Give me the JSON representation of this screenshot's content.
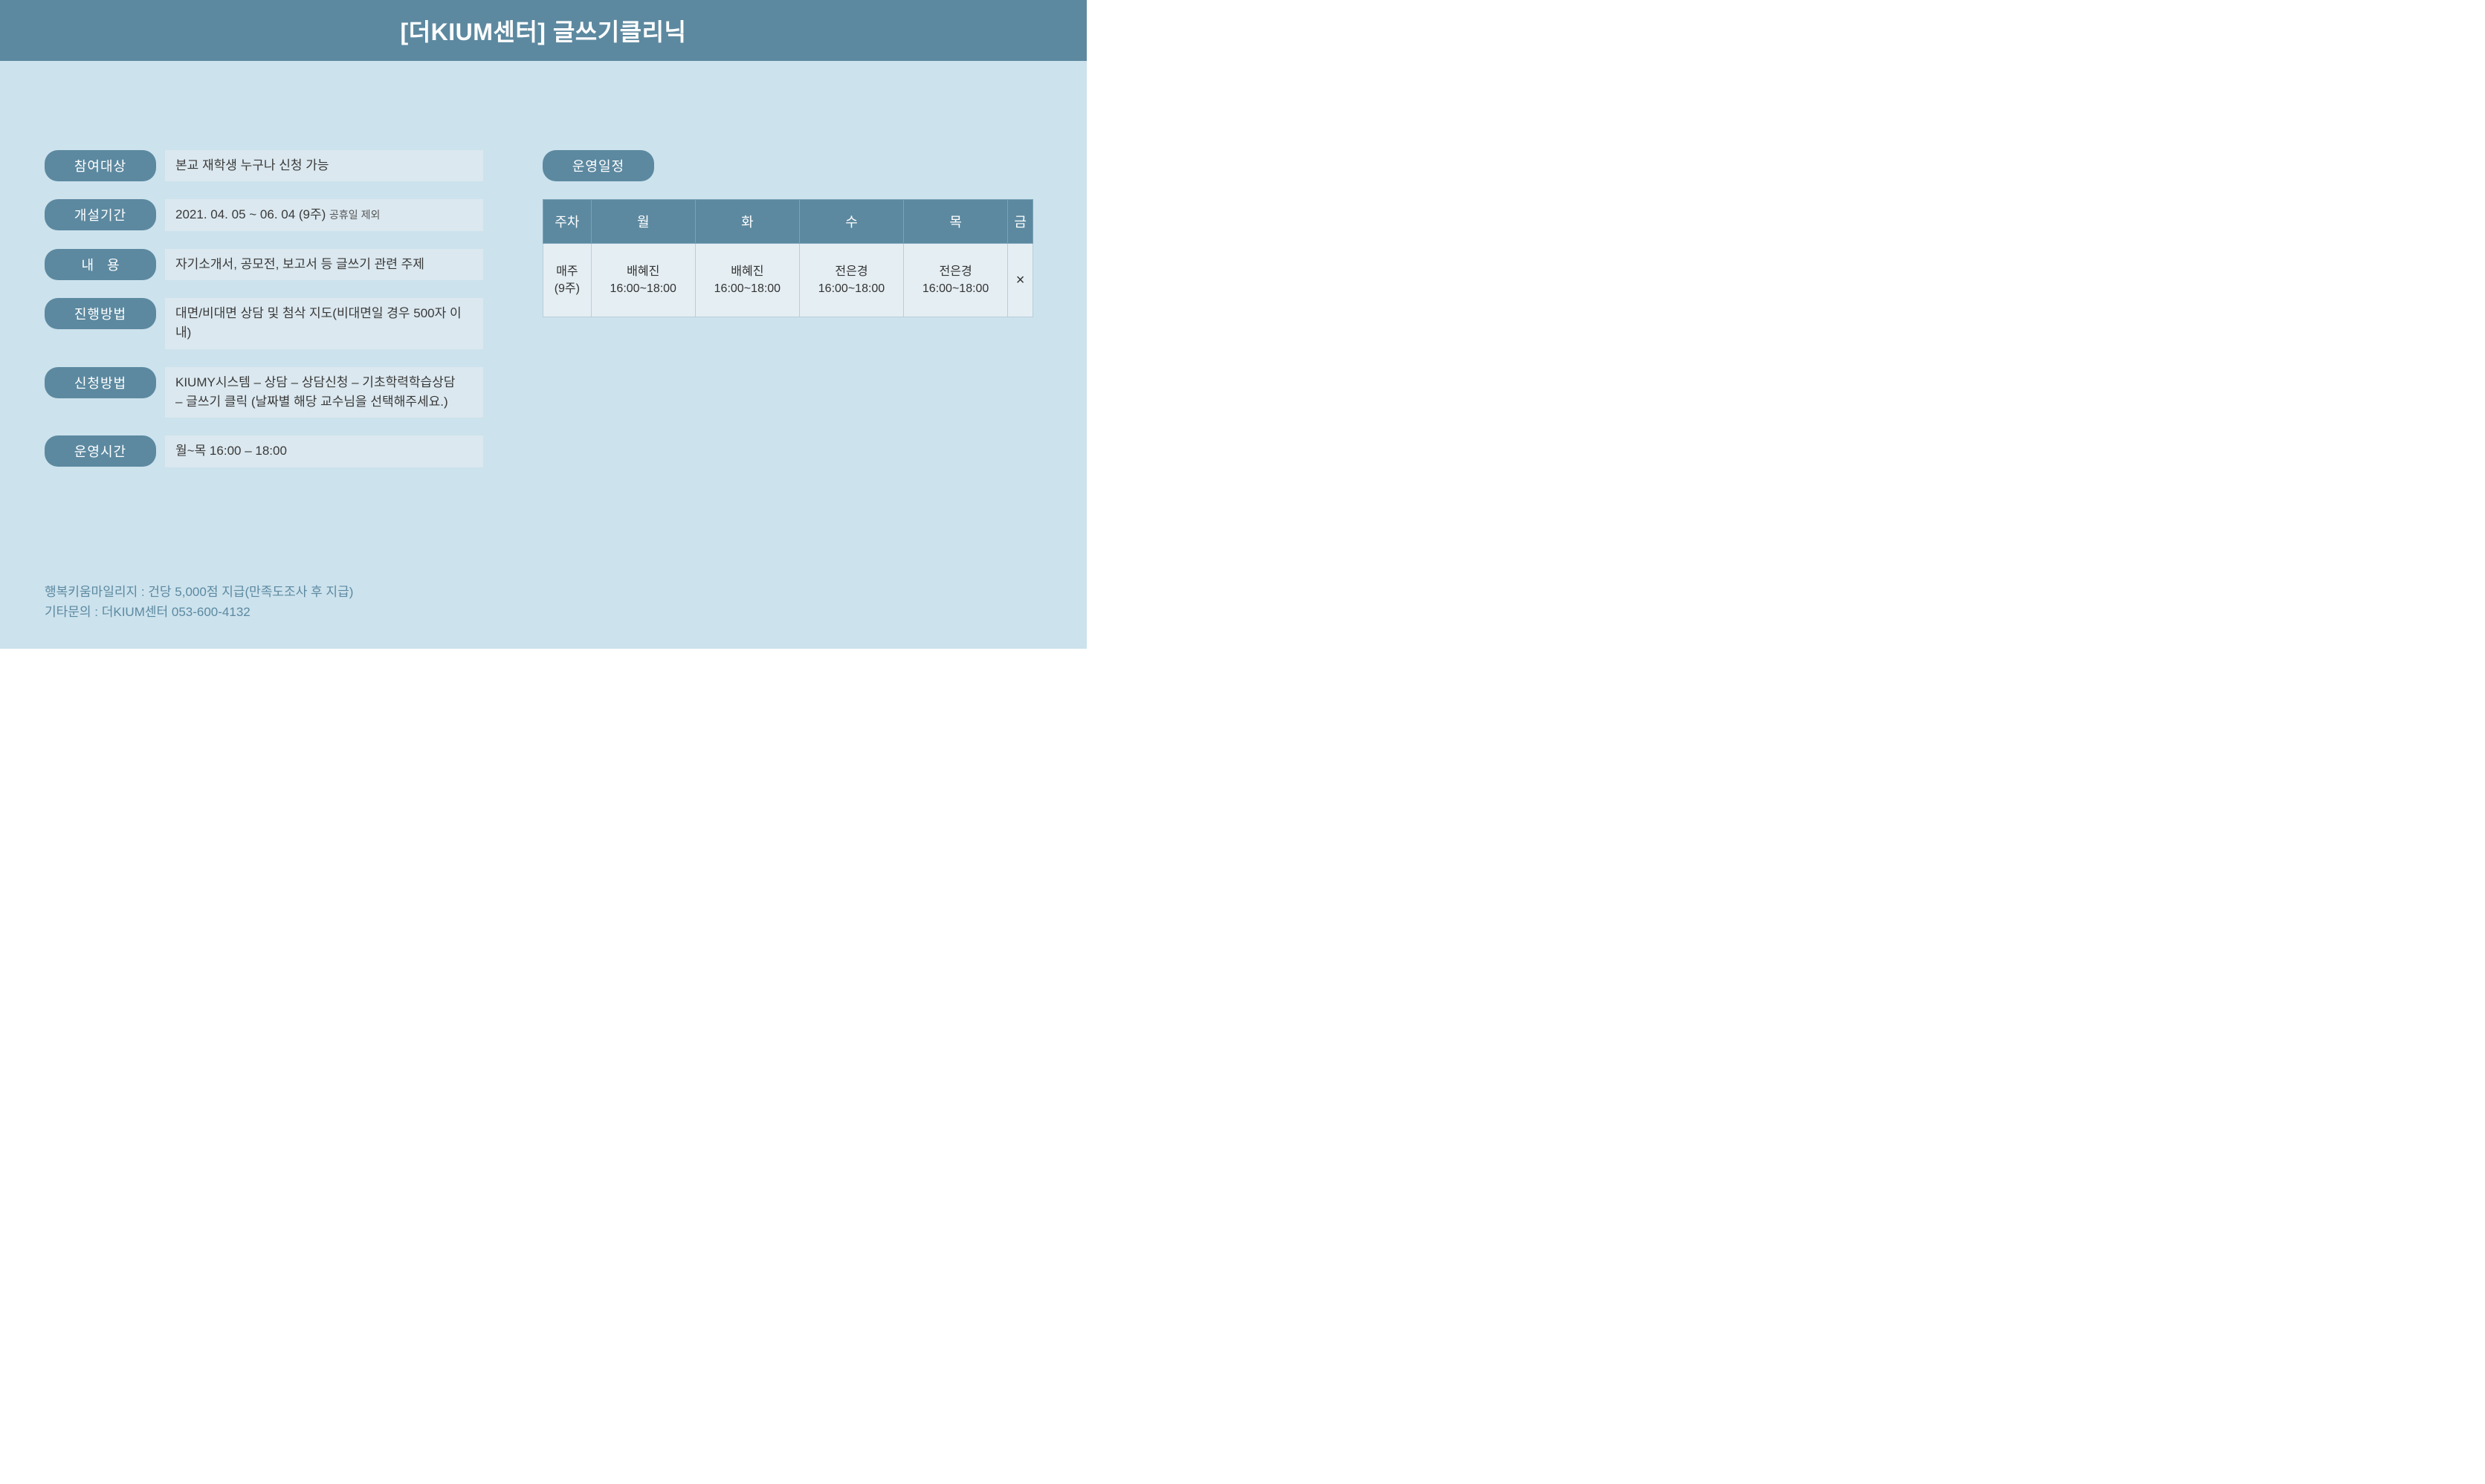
{
  "header": {
    "title": "[더KIUM센터] 글쓰기클리닉"
  },
  "info": [
    {
      "label": "참여대상",
      "value": "본교 재학생 누구나 신청 가능",
      "spaced": false
    },
    {
      "label": "개설기간",
      "value": "2021. 04. 05 ~ 06. 04 (9주)",
      "sub": "공휴일 제외",
      "spaced": false
    },
    {
      "label": "내용",
      "value": "자기소개서, 공모전, 보고서 등 글쓰기 관련 주제",
      "spaced": true
    },
    {
      "label": "진행방법",
      "value": "대면/비대면 상담 및 첨삭 지도(비대면일 경우 500자 이내)",
      "spaced": false
    },
    {
      "label": "신청방법",
      "value": "KIUMY시스템 – 상담 – 상담신청 – 기초학력학습상담\n– 글쓰기 클릭 (날짜별 해당 교수님을 선택해주세요.)",
      "spaced": false
    },
    {
      "label": "운영시간",
      "value": "월~목 16:00 – 18:00",
      "spaced": false
    }
  ],
  "schedule": {
    "label": "운영일정",
    "columns": [
      "주차",
      "월",
      "화",
      "수",
      "목",
      "금"
    ],
    "row": {
      "week": "매주\n(9주)",
      "cells": [
        "배혜진\n16:00~18:00",
        "배혜진\n16:00~18:00",
        "전은경\n16:00~18:00",
        "전은경\n16:00~18:00",
        "×"
      ]
    }
  },
  "footer": {
    "line1": "행복키움마일리지 : 건당 5,000점 지급(만족도조사 후 지급)",
    "line2": "기타문의 : 더KIUM센터 053-600-4132"
  },
  "styling": {
    "page_bg": "#cce2ed",
    "header_bg": "#5c89a0",
    "header_text_color": "#ffffff",
    "label_bg": "#5c89a0",
    "label_text_color": "#ffffff",
    "value_bg": "#dbe8ef",
    "table_header_bg": "#5c89a0",
    "table_cell_bg": "#e5eef3",
    "footer_text_color": "#5c89a0"
  }
}
